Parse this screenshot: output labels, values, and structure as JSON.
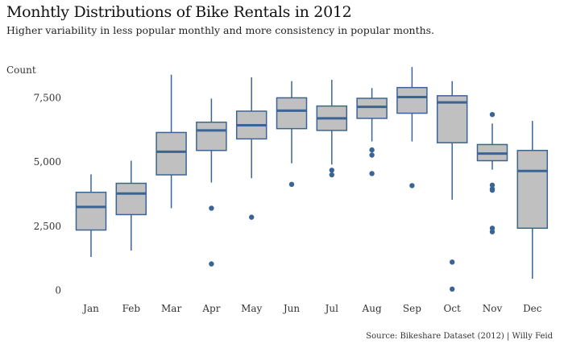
{
  "chart_data": {
    "type": "boxplot",
    "title": "Monhtly Distributions of Bike Rentals in 2012",
    "subtitle": "Higher variability in less popular monthly and more consistency in popular months.",
    "caption": "Source: Bikeshare Dataset (2012) | Willy Feid",
    "ylabel": "Count",
    "xlabel": "",
    "ylim": [
      -300,
      8800
    ],
    "yticks": [
      0,
      2500,
      5000,
      7500
    ],
    "ytick_labels": [
      "0",
      "2,500",
      "5,000",
      "7,500"
    ],
    "grid": false,
    "colors": {
      "box_fill": "#c0c0c0",
      "line": "#3b6496",
      "outlier": "#3b6496"
    },
    "categories": [
      "Jan",
      "Feb",
      "Mar",
      "Apr",
      "May",
      "Jun",
      "Jul",
      "Aug",
      "Sep",
      "Oct",
      "Nov",
      "Dec"
    ],
    "boxes": [
      {
        "month": "Jan",
        "whisker_low": 1300,
        "q1": 2350,
        "median": 3250,
        "q3": 3820,
        "whisker_high": 4520,
        "outliers": []
      },
      {
        "month": "Feb",
        "whisker_low": 1550,
        "q1": 2950,
        "median": 3770,
        "q3": 4170,
        "whisker_high": 5050,
        "outliers": []
      },
      {
        "month": "Mar",
        "whisker_low": 3200,
        "q1": 4500,
        "median": 5400,
        "q3": 6150,
        "whisker_high": 8400,
        "outliers": []
      },
      {
        "month": "Apr",
        "whisker_low": 4200,
        "q1": 5450,
        "median": 6230,
        "q3": 6550,
        "whisker_high": 7470,
        "outliers": [
          3200,
          1030
        ]
      },
      {
        "month": "May",
        "whisker_low": 4370,
        "q1": 5900,
        "median": 6430,
        "q3": 6980,
        "whisker_high": 8300,
        "outliers": [
          2850
        ]
      },
      {
        "month": "Jun",
        "whisker_low": 4950,
        "q1": 6300,
        "median": 7000,
        "q3": 7500,
        "whisker_high": 8150,
        "outliers": [
          4130
        ]
      },
      {
        "month": "Jul",
        "whisker_low": 4900,
        "q1": 6230,
        "median": 6700,
        "q3": 7180,
        "whisker_high": 8200,
        "outliers": [
          4680,
          4500
        ]
      },
      {
        "month": "Aug",
        "whisker_low": 5800,
        "q1": 6700,
        "median": 7150,
        "q3": 7480,
        "whisker_high": 7880,
        "outliers": [
          5470,
          5270,
          4550
        ]
      },
      {
        "month": "Sep",
        "whisker_low": 5800,
        "q1": 6900,
        "median": 7530,
        "q3": 7900,
        "whisker_high": 8700,
        "outliers": [
          4080
        ]
      },
      {
        "month": "Oct",
        "whisker_low": 3530,
        "q1": 5750,
        "median": 7320,
        "q3": 7580,
        "whisker_high": 8150,
        "outliers": [
          1100,
          50
        ]
      },
      {
        "month": "Nov",
        "whisker_low": 4700,
        "q1": 5050,
        "median": 5330,
        "q3": 5680,
        "whisker_high": 6500,
        "outliers": [
          6850,
          4100,
          3950,
          3900,
          2420,
          2280
        ]
      },
      {
        "month": "Dec",
        "whisker_low": 450,
        "q1": 2420,
        "median": 4650,
        "q3": 5450,
        "whisker_high": 6600,
        "outliers": []
      }
    ]
  }
}
